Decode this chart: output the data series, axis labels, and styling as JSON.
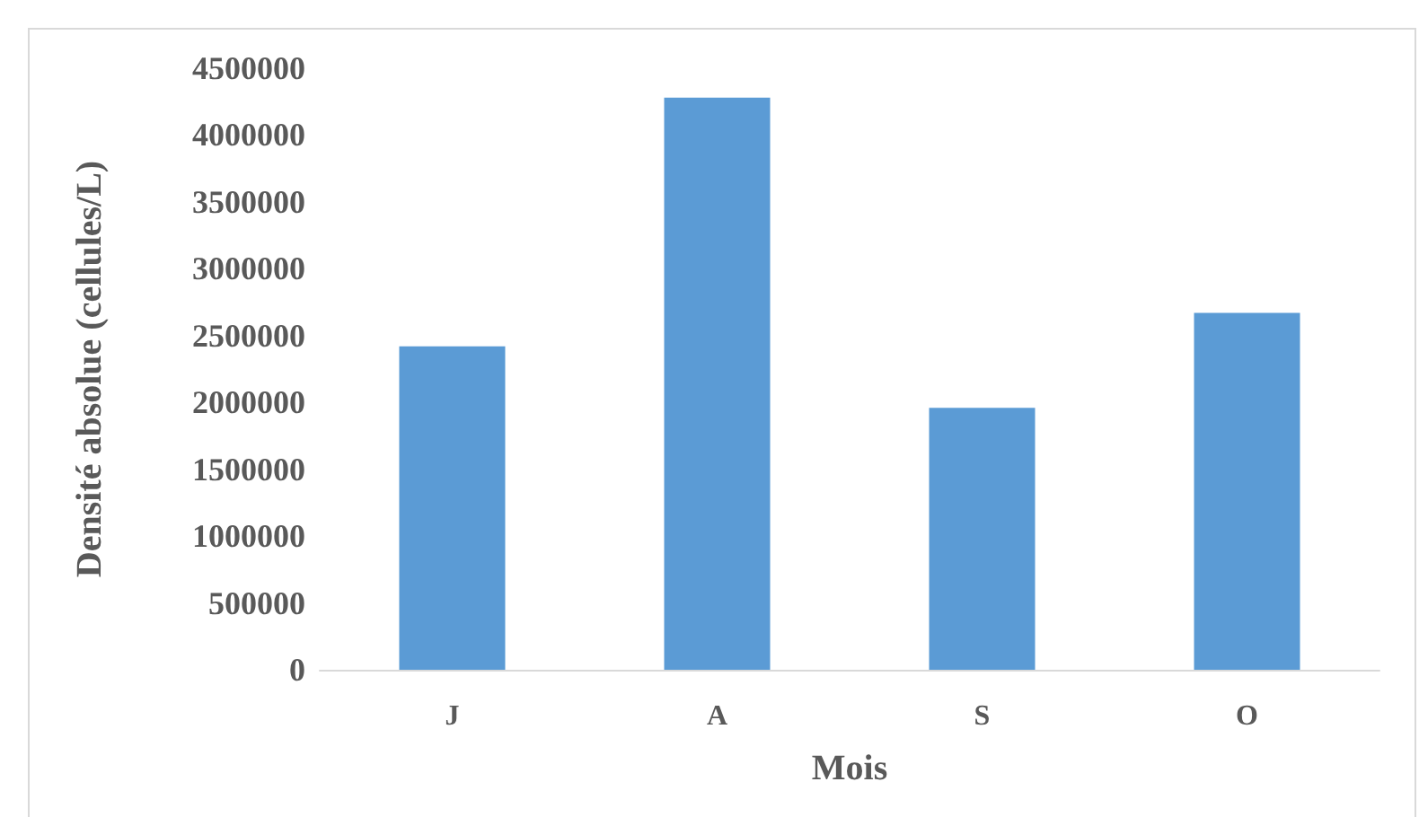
{
  "chart_data": {
    "type": "bar",
    "xlabel": "Mois",
    "ylabel": "Densité absolue (cellules/L)",
    "categories": [
      "J",
      "A",
      "S",
      "O"
    ],
    "values": [
      2420000,
      4280000,
      1960000,
      2670000
    ],
    "color": "#5b9bd5",
    "ylim": [
      0,
      4500000
    ],
    "yticks": [
      0,
      500000,
      1000000,
      1500000,
      2000000,
      2500000,
      3000000,
      3500000,
      4000000,
      4500000
    ],
    "grid": false
  }
}
